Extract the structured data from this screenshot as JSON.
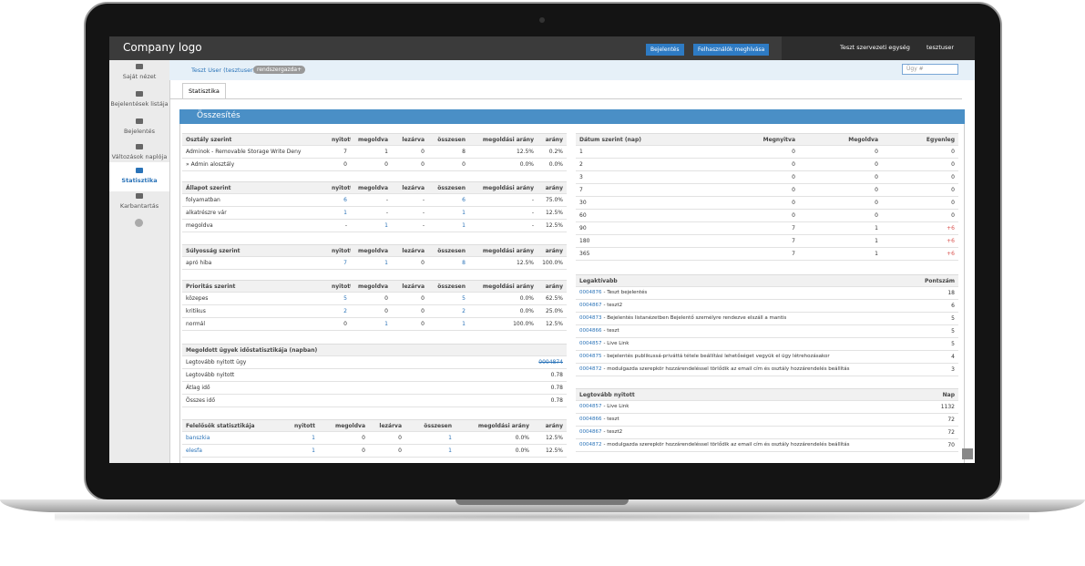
{
  "header": {
    "logo": "Company logo",
    "buttons": [
      "Bejelentés",
      "Felhasználók meghívása"
    ],
    "unit": "Teszt szervezeti egység",
    "user": "tesztuser"
  },
  "sidebar": [
    "Saját nézet",
    "Bejelentések listája",
    "Bejelentés",
    "Változások naplója",
    "Statisztika",
    "Karbantartás"
  ],
  "userbar": {
    "name": "Teszt User (tesztuser)",
    "role": "rendszergazda+",
    "search": "Ügy #"
  },
  "tab": "Statisztika",
  "panel_title": "Összesítés",
  "tables": {
    "left": [
      {
        "headers": [
          "Osztály szerint",
          "nyitott",
          "megoldva",
          "lezárva",
          "összesen",
          "megoldási arány",
          "arány"
        ],
        "rows": [
          [
            "Adminok - Removable Storage Write Deny",
            "7",
            "1",
            "0",
            "8",
            "12.5%",
            "0.2%"
          ],
          [
            "» Admin alosztály",
            "0",
            "0",
            "0",
            "0",
            "0.0%",
            "0.0%"
          ]
        ]
      },
      {
        "headers": [
          "Állapot szerint",
          "nyitott",
          "megoldva",
          "lezárva",
          "összesen",
          "megoldási arány",
          "arány"
        ],
        "rows": [
          [
            "folyamatban",
            "6",
            "-",
            "-",
            "6",
            "-",
            "75.0%"
          ],
          [
            "alkatrészre vár",
            "1",
            "-",
            "-",
            "1",
            "-",
            "12.5%"
          ],
          [
            "megoldva",
            "-",
            "1",
            "-",
            "1",
            "-",
            "12.5%"
          ]
        ]
      },
      {
        "headers": [
          "Súlyosság szerint",
          "nyitott",
          "megoldva",
          "lezárva",
          "összesen",
          "megoldási arány",
          "arány"
        ],
        "rows": [
          [
            "apró hiba",
            "7",
            "1",
            "0",
            "8",
            "12.5%",
            "100.0%"
          ]
        ]
      },
      {
        "headers": [
          "Prioritás szerint",
          "nyitott",
          "megoldva",
          "lezárva",
          "összesen",
          "megoldási arány",
          "arány"
        ],
        "rows": [
          [
            "közepes",
            "5",
            "0",
            "0",
            "5",
            "0.0%",
            "62.5%"
          ],
          [
            "kritikus",
            "2",
            "0",
            "0",
            "2",
            "0.0%",
            "25.0%"
          ],
          [
            "normál",
            "0",
            "1",
            "0",
            "1",
            "100.0%",
            "12.5%"
          ]
        ]
      },
      {
        "headers": [
          "Megoldott ügyek időstatisztikája (napban)"
        ],
        "rows": [
          [
            "Legtovább nyitott ügy",
            "0004874"
          ],
          [
            "Legtovább nyitott",
            "0.78"
          ],
          [
            "Átlag idő",
            "0.78"
          ],
          [
            "Összes idő",
            "0.78"
          ]
        ]
      },
      {
        "headers": [
          "Felelősök statisztikája",
          "nyitott",
          "megoldva",
          "lezárva",
          "összesen",
          "megoldási arány",
          "arány"
        ],
        "rows": [
          [
            "banszkia",
            "1",
            "0",
            "0",
            "1",
            "0.0%",
            "12.5%"
          ],
          [
            "elesfa",
            "1",
            "0",
            "0",
            "1",
            "0.0%",
            "12.5%"
          ]
        ]
      }
    ],
    "right": [
      {
        "headers": [
          "Dátum szerint (nap)",
          "Megnyitva",
          "Megoldva",
          "Egyenleg"
        ],
        "rows": [
          [
            "1",
            "0",
            "0",
            "0"
          ],
          [
            "2",
            "0",
            "0",
            "0"
          ],
          [
            "3",
            "0",
            "0",
            "0"
          ],
          [
            "7",
            "0",
            "0",
            "0"
          ],
          [
            "30",
            "0",
            "0",
            "0"
          ],
          [
            "60",
            "0",
            "0",
            "0"
          ],
          [
            "90",
            "7",
            "1",
            "+6"
          ],
          [
            "180",
            "7",
            "1",
            "+6"
          ],
          [
            "365",
            "7",
            "1",
            "+6"
          ]
        ]
      },
      {
        "headers": [
          "Legaktívabb",
          "Pontszám"
        ],
        "rows": [
          [
            {
              "id": "0004876",
              "text": "- Teszt bejelentés"
            },
            "18"
          ],
          [
            {
              "id": "0004867",
              "text": "- teszt2"
            },
            "6"
          ],
          [
            {
              "id": "0004873",
              "text": "- Bejelentés listanézetben Bejelentő személyre rendezve elszáll a mantis"
            },
            "5"
          ],
          [
            {
              "id": "0004866",
              "text": "- teszt"
            },
            "5"
          ],
          [
            {
              "id": "0004857",
              "text": "- Live Link"
            },
            "5"
          ],
          [
            {
              "id": "0004875",
              "text": "- bejelentés publikussá-priváttá tétele beállítási lehetőséget vegyük el ügy létrehozásakor"
            },
            "4"
          ],
          [
            {
              "id": "0004872",
              "text": "- modulgazda szerepkör hozzárendeléssel törlődik az email cím és osztály hozzárendelés beállítás"
            },
            "3"
          ]
        ]
      },
      {
        "headers": [
          "Legtovább nyitott",
          "Nap"
        ],
        "rows": [
          [
            {
              "id": "0004857",
              "text": "- Live Link"
            },
            "1132"
          ],
          [
            {
              "id": "0004866",
              "text": "- teszt"
            },
            "72"
          ],
          [
            {
              "id": "0004867",
              "text": "- teszt2"
            },
            "72"
          ],
          [
            {
              "id": "0004872",
              "text": "- modulgazda szerepkör hozzárendeléssel törlődik az email cím és osztály hozzárendelés beállítás"
            },
            "70"
          ]
        ]
      }
    ]
  }
}
